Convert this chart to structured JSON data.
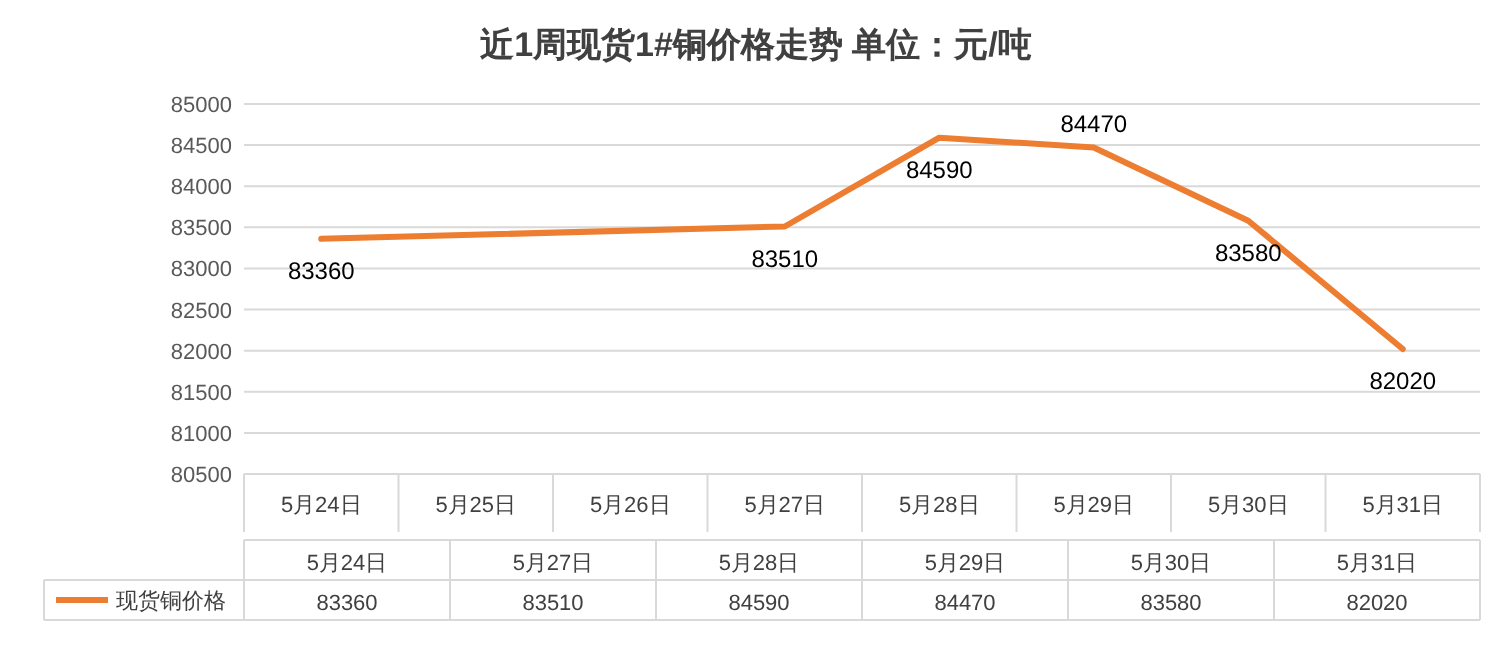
{
  "chart_data": [
    {
      "type": "line",
      "title": "近1周现货1#铜价格走势  单位：元/吨",
      "categories": [
        "5月24日",
        "5月25日",
        "5月26日",
        "5月27日",
        "5月28日",
        "5月29日",
        "5月30日",
        "5月31日"
      ],
      "series": [
        {
          "name": "现货铜价格",
          "color": "#ed7d31",
          "values": [
            83360,
            null,
            null,
            83510,
            84590,
            84470,
            83580,
            82020
          ]
        }
      ],
      "ylim": [
        80500,
        85000
      ],
      "yticks": [
        80500,
        81000,
        81500,
        82000,
        82500,
        83000,
        83500,
        84000,
        84500,
        85000
      ],
      "grid": "y",
      "legend": "bottom left",
      "data_labels": true
    },
    {
      "type": "other",
      "categories": [
        "5月24日",
        "5月27日",
        "5月28日",
        "5月29日",
        "5月30日",
        "5月31日"
      ],
      "values": [
        83360,
        83510,
        84590,
        84470,
        83580,
        82020
      ],
      "data_labels": true
    }
  ]
}
